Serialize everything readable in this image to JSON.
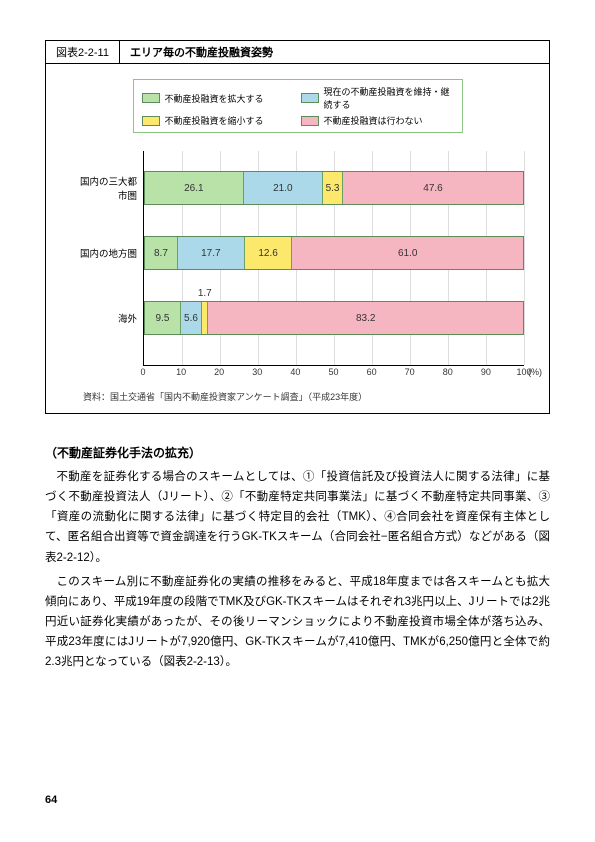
{
  "chart": {
    "figure_number": "図表2-2-11",
    "title": "エリア毎の不動産投融資姿勢",
    "legend": [
      {
        "label": "不動産投融資を拡大する",
        "color": "#B8E2A7"
      },
      {
        "label": "現在の不動産投融資を維持・継続する",
        "color": "#ABD9EA"
      },
      {
        "label": "不動産投融資を縮小する",
        "color": "#FCE96C"
      },
      {
        "label": "不動産投融資は行わない",
        "color": "#F6B6C1"
      }
    ],
    "categories": [
      {
        "name": "国内の三大都市圏",
        "values": [
          26.1,
          21.0,
          5.3,
          47.6
        ]
      },
      {
        "name": "国内の地方圏",
        "values": [
          8.7,
          17.7,
          12.6,
          61.0
        ]
      },
      {
        "name": "海外",
        "values": [
          9.5,
          5.6,
          1.7,
          83.2
        ]
      }
    ],
    "xaxis": {
      "min": 0,
      "max": 100,
      "step": 10,
      "unit": "(%)"
    },
    "grid_color": "#dddddd",
    "border_color": "#5C8C57",
    "row_tops": [
      20,
      85,
      150
    ],
    "source": "資料：国土交通省「国内不動産投資家アンケート調査」（平成23年度）"
  },
  "section_heading": "（不動産証券化手法の拡充）",
  "paragraphs": [
    "不動産を証券化する場合のスキームとしては、①「投資信託及び投資法人に関する法律」に基づく不動産投資法人（Jリート）、②「不動産特定共同事業法」に基づく不動産特定共同事業、③「資産の流動化に関する法律」に基づく特定目的会社（TMK）、④合同会社を資産保有主体として、匿名組合出資等で資金調達を行うGK-TKスキーム（合同会社−匿名組合方式）などがある（図表2-2-12）。",
    "このスキーム別に不動産証券化の実績の推移をみると、平成18年度までは各スキームとも拡大傾向にあり、平成19年度の段階でTMK及びGK-TKスキームはそれぞれ3兆円以上、Jリートでは2兆円近い証券化実績があったが、その後リーマンショックにより不動産投資市場全体が落ち込み、平成23年度にはJリートが7,920億円、GK-TKスキームが7,410億円、TMKが6,250億円と全体で約2.3兆円となっている（図表2-2-13）。"
  ],
  "page_number": "64"
}
